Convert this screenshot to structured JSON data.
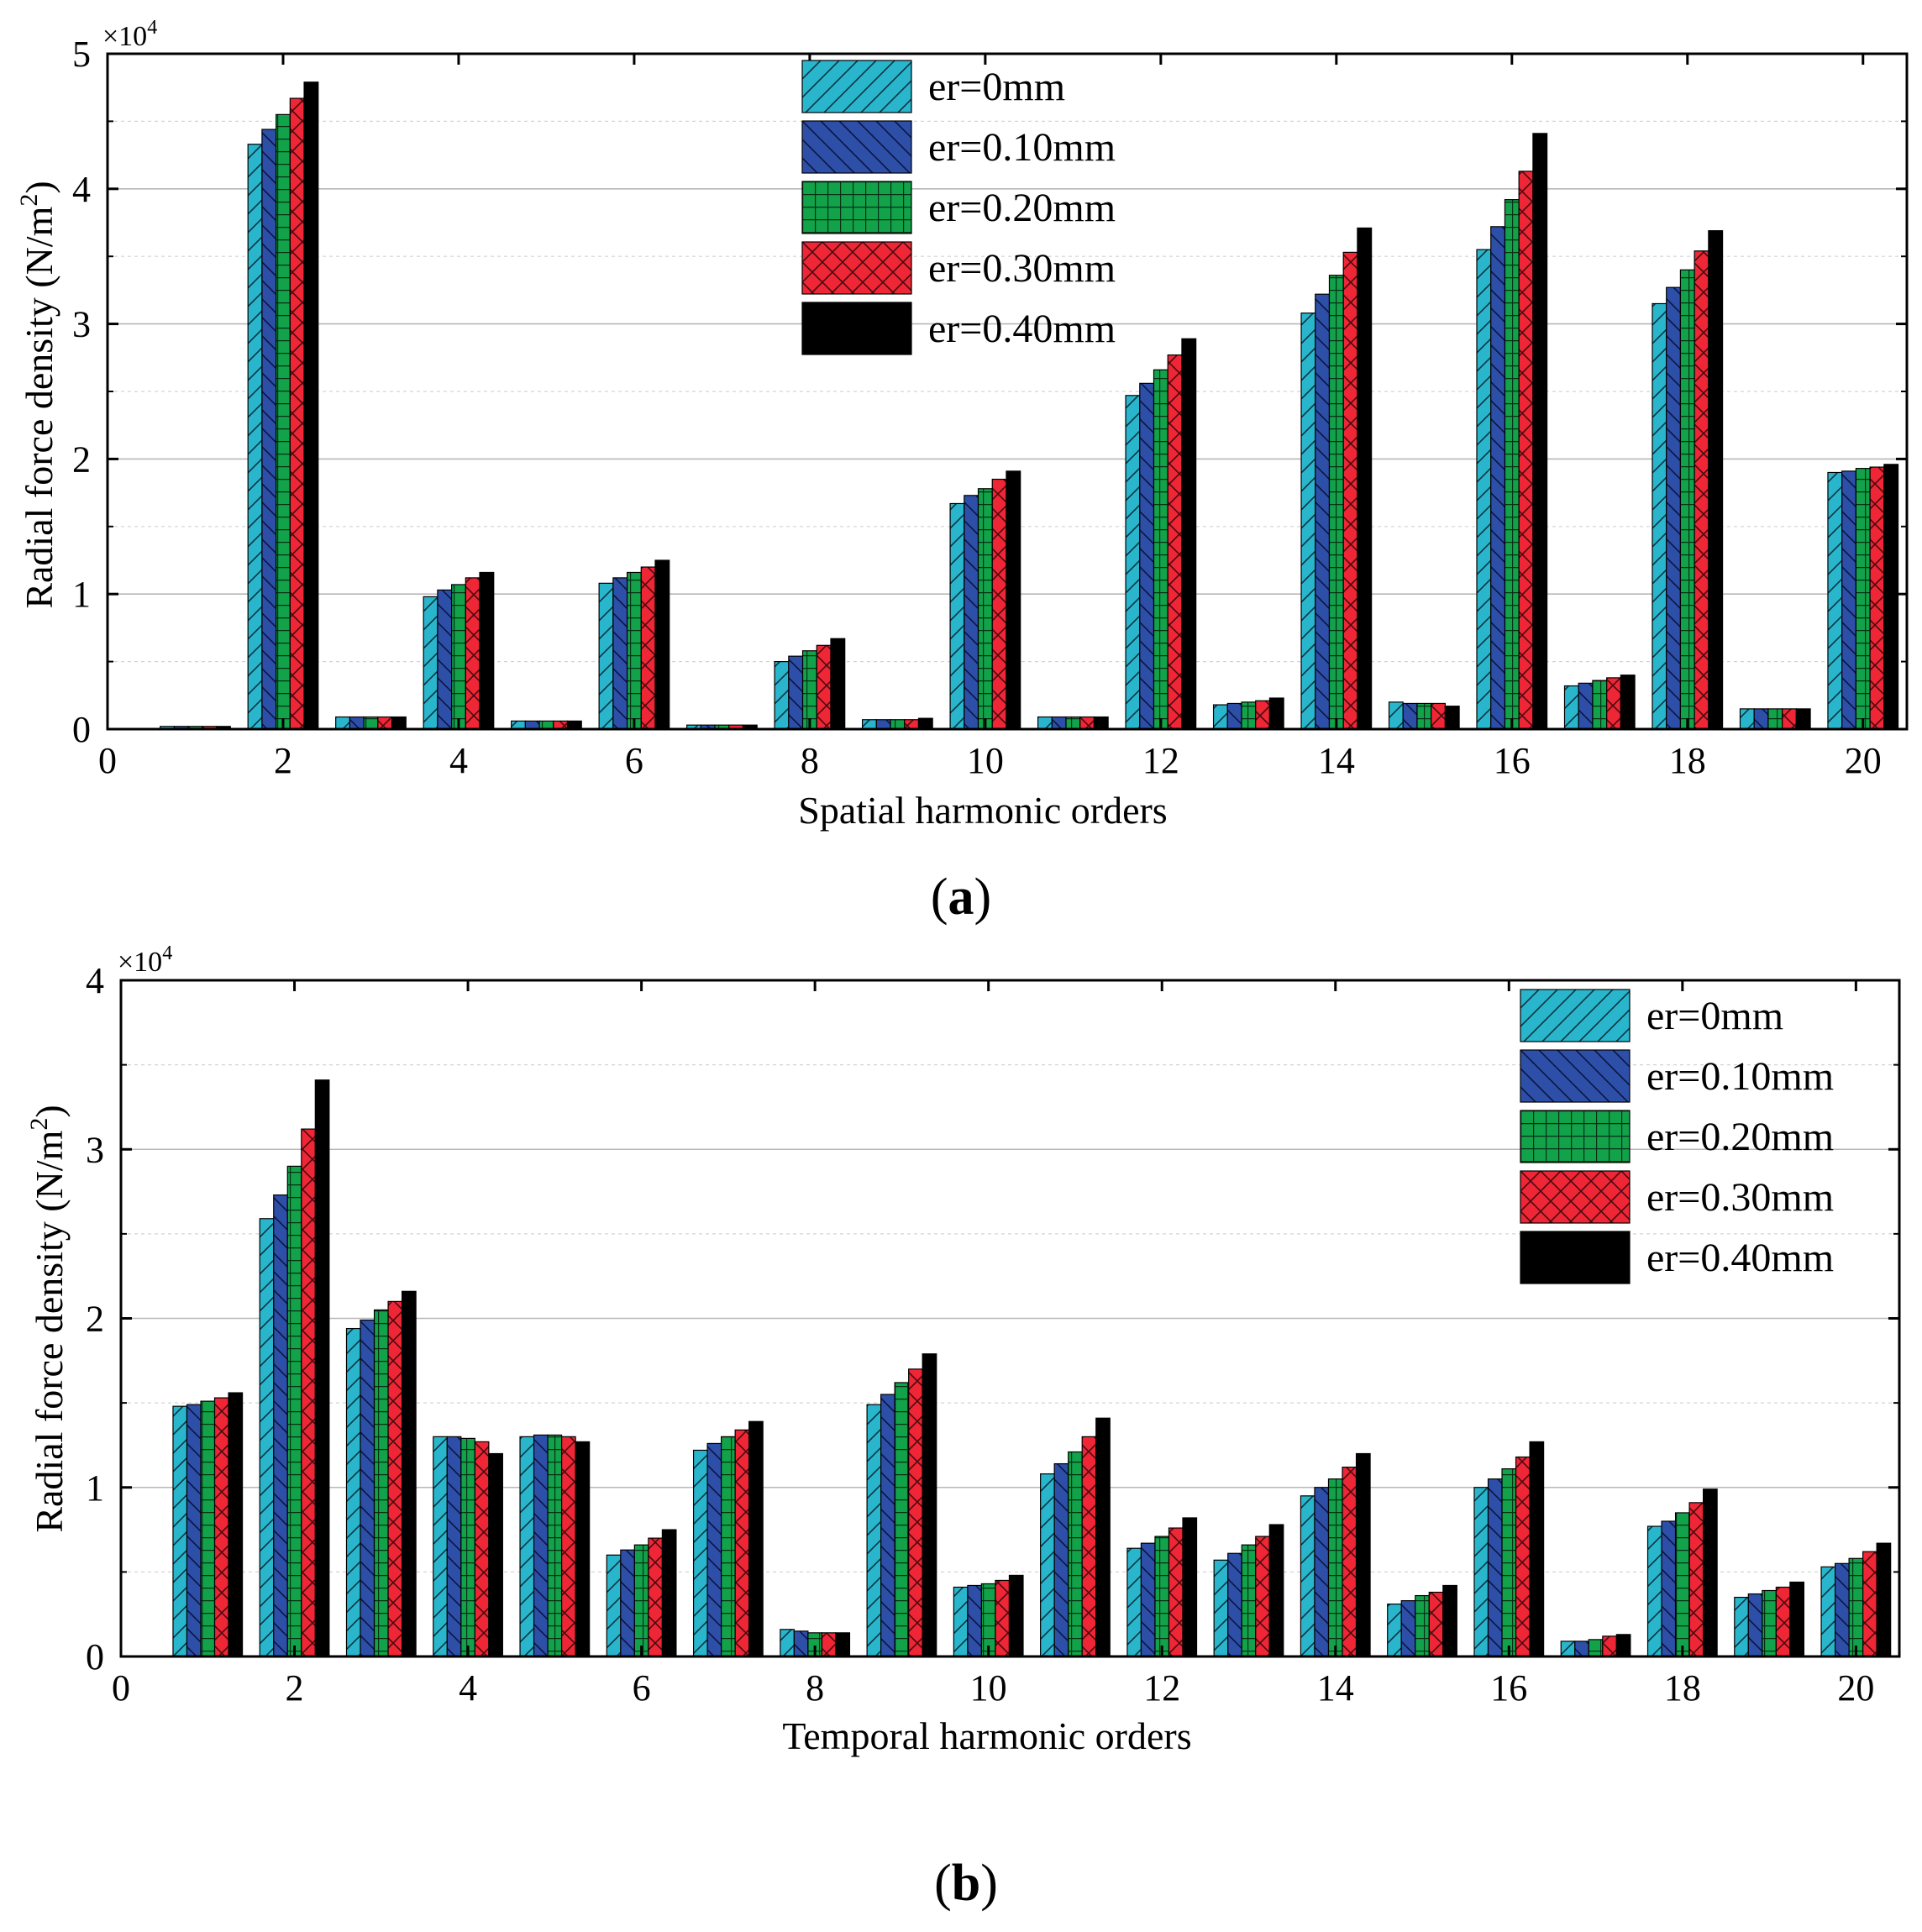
{
  "chart_data": [
    {
      "panel_label": "(a)",
      "panel_open": "(",
      "panel_letter": "a",
      "panel_close": ")",
      "type": "bar",
      "xlabel": "Spatial harmonic orders",
      "ylabel": "Radial force density (N/m²)",
      "ylabel_main": "Radial force density (N/m",
      "ylabel_sup": "2",
      "ylabel_end": ")",
      "multiplier": "×10",
      "multiplier_exp": "4",
      "xlim": [
        0,
        20.5
      ],
      "ylim": [
        0,
        5
      ],
      "yticks": [
        0,
        1,
        2,
        3,
        4,
        5
      ],
      "ytick_labels": [
        "0",
        "1",
        "2",
        "3",
        "4",
        "5"
      ],
      "xticks": [
        0,
        2,
        4,
        6,
        8,
        10,
        12,
        14,
        16,
        18,
        20
      ],
      "xtick_labels": [
        "0",
        "2",
        "4",
        "6",
        "8",
        "10",
        "12",
        "14",
        "16",
        "18",
        "20"
      ],
      "grid": true,
      "legend_position": "top-center",
      "categories": [
        1,
        2,
        3,
        4,
        5,
        6,
        7,
        8,
        9,
        10,
        11,
        12,
        13,
        14,
        15,
        16,
        17,
        18,
        19,
        20
      ],
      "series": [
        {
          "name": "er=0mm",
          "values": [
            0.02,
            4.33,
            0.09,
            0.98,
            0.06,
            1.08,
            0.03,
            0.5,
            0.07,
            1.67,
            0.09,
            2.47,
            0.18,
            3.08,
            0.2,
            3.55,
            0.32,
            3.15,
            0.15,
            1.9
          ]
        },
        {
          "name": "er=0.10mm",
          "values": [
            0.02,
            4.44,
            0.09,
            1.03,
            0.06,
            1.12,
            0.03,
            0.54,
            0.07,
            1.73,
            0.09,
            2.56,
            0.19,
            3.22,
            0.19,
            3.72,
            0.34,
            3.27,
            0.15,
            1.91
          ]
        },
        {
          "name": "er=0.20mm",
          "values": [
            0.02,
            4.55,
            0.09,
            1.07,
            0.06,
            1.16,
            0.03,
            0.58,
            0.07,
            1.78,
            0.09,
            2.66,
            0.2,
            3.36,
            0.19,
            3.92,
            0.36,
            3.4,
            0.15,
            1.93
          ]
        },
        {
          "name": "er=0.30mm",
          "values": [
            0.02,
            4.67,
            0.09,
            1.12,
            0.06,
            1.2,
            0.03,
            0.62,
            0.07,
            1.85,
            0.09,
            2.77,
            0.21,
            3.53,
            0.19,
            4.13,
            0.38,
            3.54,
            0.15,
            1.94
          ]
        },
        {
          "name": "er=0.40mm",
          "values": [
            0.02,
            4.79,
            0.09,
            1.16,
            0.06,
            1.25,
            0.03,
            0.67,
            0.08,
            1.91,
            0.09,
            2.89,
            0.23,
            3.71,
            0.17,
            4.41,
            0.4,
            3.69,
            0.15,
            1.96
          ]
        }
      ]
    },
    {
      "panel_label": "(b)",
      "panel_open": "(",
      "panel_letter": "b",
      "panel_close": ")",
      "type": "bar",
      "xlabel": "Temporal harmonic orders",
      "ylabel": "Radial force density (N/m²)",
      "ylabel_main": "Radial force density (N/m",
      "ylabel_sup": "2",
      "ylabel_end": ")",
      "multiplier": "×10",
      "multiplier_exp": "4",
      "xlim": [
        0,
        20.5
      ],
      "ylim": [
        0,
        4
      ],
      "yticks": [
        0,
        1,
        2,
        3,
        4
      ],
      "ytick_labels": [
        "0",
        "1",
        "2",
        "3",
        "4"
      ],
      "xticks": [
        0,
        2,
        4,
        6,
        8,
        10,
        12,
        14,
        16,
        18,
        20
      ],
      "xtick_labels": [
        "0",
        "2",
        "4",
        "6",
        "8",
        "10",
        "12",
        "14",
        "16",
        "18",
        "20"
      ],
      "grid": true,
      "legend_position": "top-right",
      "categories": [
        1,
        2,
        3,
        4,
        5,
        6,
        7,
        8,
        9,
        10,
        11,
        12,
        13,
        14,
        15,
        16,
        17,
        18,
        19,
        20
      ],
      "series": [
        {
          "name": "er=0mm",
          "values": [
            1.48,
            2.59,
            1.94,
            1.3,
            1.3,
            0.6,
            1.22,
            0.16,
            1.49,
            0.41,
            1.08,
            0.64,
            0.57,
            0.95,
            0.31,
            1.0,
            0.09,
            0.77,
            0.35,
            0.53
          ]
        },
        {
          "name": "er=0.10mm",
          "values": [
            1.49,
            2.73,
            1.99,
            1.3,
            1.31,
            0.63,
            1.26,
            0.15,
            1.55,
            0.42,
            1.14,
            0.67,
            0.61,
            1.0,
            0.33,
            1.05,
            0.09,
            0.8,
            0.37,
            0.55
          ]
        },
        {
          "name": "er=0.20mm",
          "values": [
            1.51,
            2.9,
            2.05,
            1.29,
            1.31,
            0.66,
            1.3,
            0.14,
            1.62,
            0.43,
            1.21,
            0.71,
            0.66,
            1.05,
            0.36,
            1.11,
            0.1,
            0.85,
            0.39,
            0.58
          ]
        },
        {
          "name": "er=0.30mm",
          "values": [
            1.53,
            3.12,
            2.1,
            1.27,
            1.3,
            0.7,
            1.34,
            0.14,
            1.7,
            0.45,
            1.3,
            0.76,
            0.71,
            1.12,
            0.38,
            1.18,
            0.12,
            0.91,
            0.41,
            0.62
          ]
        },
        {
          "name": "er=0.40mm",
          "values": [
            1.56,
            3.41,
            2.16,
            1.2,
            1.27,
            0.75,
            1.39,
            0.14,
            1.79,
            0.48,
            1.41,
            0.82,
            0.78,
            1.2,
            0.42,
            1.27,
            0.13,
            0.99,
            0.44,
            0.67
          ]
        }
      ]
    }
  ],
  "series_colors": [
    "#29b6cc",
    "#2e4fa8",
    "#12a24a",
    "#ee2635",
    "#000000"
  ],
  "series_patterns": [
    "diag-up",
    "diag-down",
    "grid",
    "crosshatch",
    "solid"
  ]
}
